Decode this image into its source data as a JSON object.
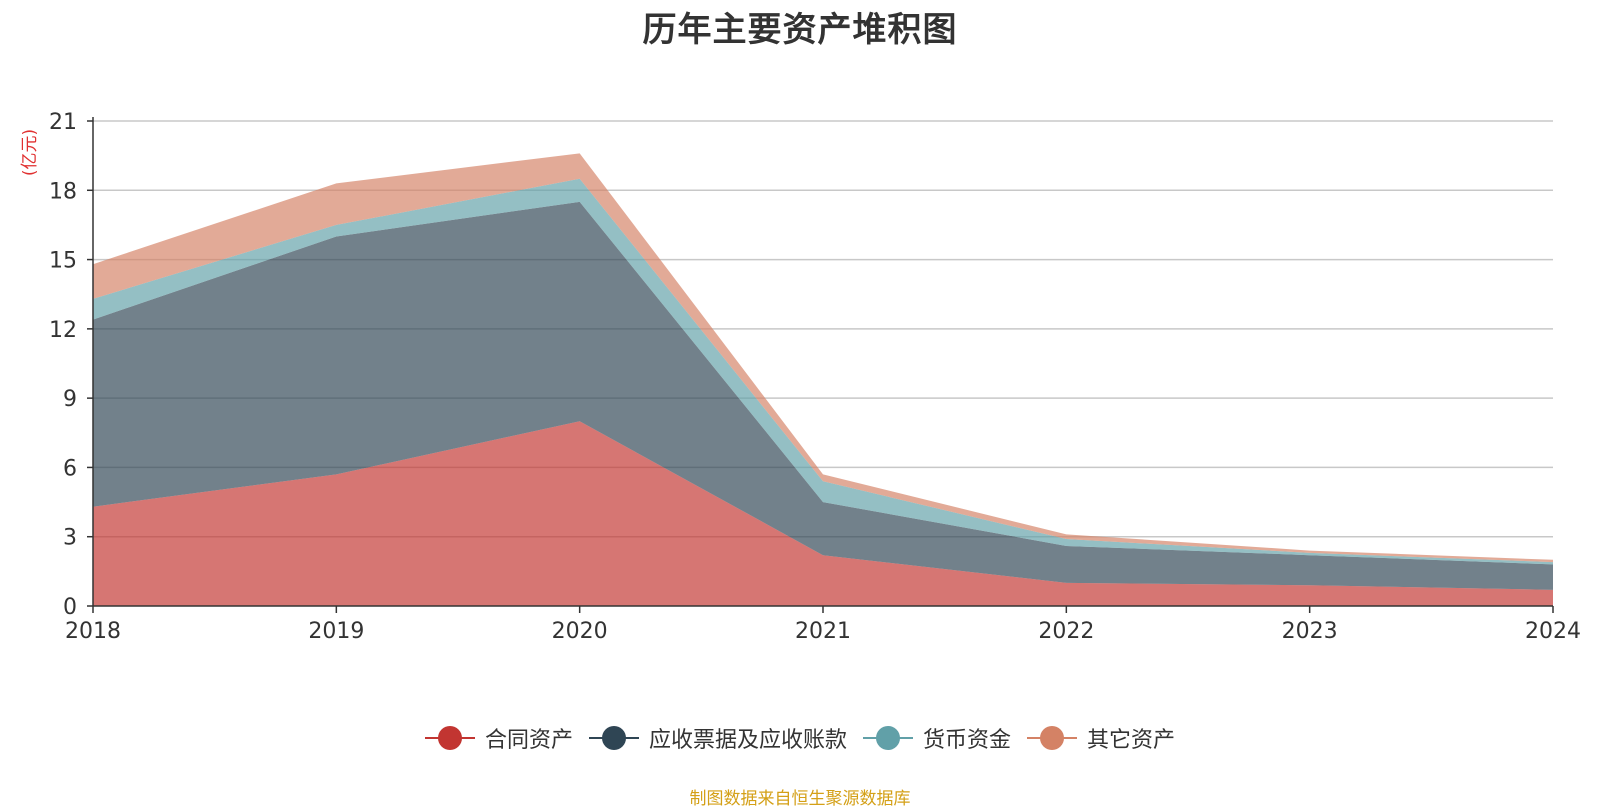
{
  "chart_data": {
    "type": "area",
    "stacked": true,
    "title": "历年主要资产堆积图",
    "ylabel": "(亿元)",
    "x": [
      "2018",
      "2019",
      "2020",
      "2021",
      "2022",
      "2023",
      "2024"
    ],
    "ylim": [
      0,
      21
    ],
    "yticks": [
      "0",
      "3",
      "6",
      "9",
      "12",
      "15",
      "18",
      "21"
    ],
    "grid": true,
    "legend_position": "bottom",
    "series": [
      {
        "name": "合同资产",
        "values": [
          4.3,
          5.7,
          8.0,
          2.2,
          1.0,
          0.9,
          0.7
        ],
        "color": "#c23531"
      },
      {
        "name": "应收票据及应收账款",
        "values": [
          8.1,
          10.3,
          9.5,
          2.3,
          1.6,
          1.3,
          1.1
        ],
        "color": "#2f4554"
      },
      {
        "name": "货币资金",
        "values": [
          0.9,
          0.5,
          1.0,
          0.9,
          0.3,
          0.1,
          0.1
        ],
        "color": "#61a0a8"
      },
      {
        "name": "其它资产",
        "values": [
          1.5,
          1.8,
          1.1,
          0.3,
          0.2,
          0.1,
          0.1
        ],
        "color": "#d48265"
      }
    ]
  },
  "source_text": "制图数据来自恒生聚源数据库"
}
